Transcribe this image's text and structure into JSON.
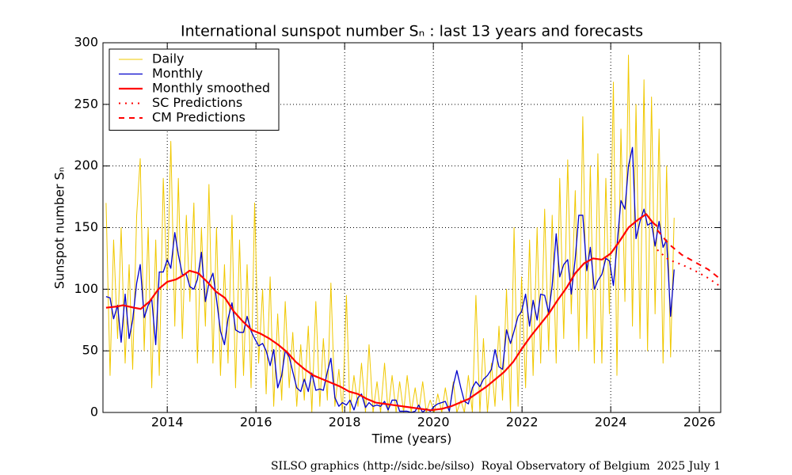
{
  "chart_data": {
    "type": "line",
    "title": "International sunspot number Sₙ : last 13 years and forecasts",
    "xlabel": "Time (years)",
    "ylabel": "Sunspot number Sₙ",
    "xlim": [
      2012.55,
      2026.48
    ],
    "ylim": [
      0,
      300
    ],
    "xticks": [
      2014,
      2016,
      2018,
      2020,
      2022,
      2024,
      2026
    ],
    "yticks": [
      0,
      50,
      100,
      150,
      200,
      250,
      300
    ],
    "grid": true,
    "legend": "upper left",
    "x": [
      2012.62,
      2012.71,
      2012.79,
      2012.88,
      2012.96,
      2013.05,
      2013.14,
      2013.22,
      2013.31,
      2013.39,
      2013.48,
      2013.57,
      2013.65,
      2013.74,
      2013.82,
      2013.91,
      2014.0,
      2014.08,
      2014.17,
      2014.25,
      2014.34,
      2014.43,
      2014.51,
      2014.6,
      2014.68,
      2014.77,
      2014.86,
      2014.94,
      2015.03,
      2015.11,
      2015.2,
      2015.29,
      2015.37,
      2015.46,
      2015.54,
      2015.63,
      2015.72,
      2015.8,
      2015.89,
      2015.97,
      2016.06,
      2016.15,
      2016.23,
      2016.32,
      2016.4,
      2016.49,
      2016.58,
      2016.66,
      2016.75,
      2016.83,
      2016.92,
      2017.01,
      2017.09,
      2017.18,
      2017.26,
      2017.35,
      2017.44,
      2017.52,
      2017.61,
      2017.69,
      2017.78,
      2017.87,
      2017.95,
      2018.04,
      2018.12,
      2018.21,
      2018.3,
      2018.38,
      2018.47,
      2018.55,
      2018.64,
      2018.73,
      2018.81,
      2018.9,
      2018.98,
      2019.07,
      2019.16,
      2019.24,
      2019.33,
      2019.41,
      2019.5,
      2019.59,
      2019.67,
      2019.76,
      2019.84,
      2019.93,
      2020.02,
      2020.1,
      2020.19,
      2020.27,
      2020.36,
      2020.45,
      2020.53,
      2020.62,
      2020.7,
      2020.79,
      2020.88,
      2020.96,
      2021.05,
      2021.13,
      2021.22,
      2021.31,
      2021.39,
      2021.48,
      2021.56,
      2021.65,
      2021.74,
      2021.82,
      2021.91,
      2021.99,
      2022.08,
      2022.17,
      2022.25,
      2022.34,
      2022.42,
      2022.51,
      2022.6,
      2022.68,
      2022.77,
      2022.85,
      2022.94,
      2023.03,
      2023.11,
      2023.2,
      2023.28,
      2023.37,
      2023.46,
      2023.54,
      2023.63,
      2023.71,
      2023.8,
      2023.89,
      2023.97,
      2024.06,
      2024.14,
      2024.23,
      2024.32,
      2024.4,
      2024.49,
      2024.57,
      2024.66,
      2024.75,
      2024.83,
      2024.92,
      2025.0,
      2025.09,
      2025.18,
      2025.26,
      2025.35,
      2025.43
    ],
    "series": [
      {
        "name": "Daily",
        "color": "#f0c800",
        "width": 1,
        "values": [
          170,
          30,
          140,
          60,
          150,
          40,
          120,
          35,
          160,
          206,
          50,
          150,
          20,
          140,
          30,
          190,
          100,
          220,
          70,
          190,
          60,
          160,
          90,
          170,
          40,
          150,
          70,
          185,
          40,
          150,
          30,
          120,
          40,
          160,
          20,
          140,
          30,
          120,
          20,
          170,
          40,
          100,
          15,
          110,
          5,
          80,
          10,
          90,
          20,
          65,
          5,
          55,
          10,
          70,
          0,
          90,
          5,
          60,
          10,
          105,
          5,
          35,
          0,
          95,
          0,
          30,
          5,
          40,
          0,
          55,
          0,
          25,
          0,
          40,
          0,
          30,
          0,
          25,
          0,
          30,
          0,
          20,
          0,
          25,
          0,
          10,
          0,
          15,
          0,
          20,
          0,
          25,
          0,
          10,
          0,
          30,
          0,
          95,
          0,
          60,
          0,
          40,
          5,
          70,
          10,
          100,
          0,
          150,
          5,
          110,
          20,
          140,
          30,
          150,
          40,
          165,
          50,
          160,
          40,
          190,
          60,
          205,
          80,
          180,
          50,
          240,
          60,
          200,
          40,
          210,
          40,
          190,
          80,
          268,
          30,
          230,
          90,
          290,
          70,
          250,
          60,
          270,
          50,
          256,
          80,
          230,
          40,
          200,
          45,
          158
        ]
      },
      {
        "name": "Monthly",
        "color": "#0000cc",
        "width": 1.3,
        "values": [
          94,
          93,
          76,
          87,
          57,
          96,
          60,
          75,
          105,
          120,
          77,
          87,
          92,
          55,
          114,
          114,
          124,
          117,
          146,
          128,
          112,
          112,
          102,
          100,
          108,
          130,
          90,
          105,
          113,
          92,
          66,
          55,
          76,
          89,
          67,
          65,
          65,
          78,
          66,
          60,
          54,
          56,
          50,
          38,
          51,
          20,
          30,
          50,
          45,
          33,
          20,
          17,
          27,
          17,
          32,
          18,
          19,
          18,
          33,
          44,
          12,
          5,
          8,
          6,
          10,
          2,
          12,
          15,
          4,
          8,
          5,
          6,
          5,
          9,
          2,
          10,
          10,
          1,
          1,
          1,
          0,
          1,
          6,
          0,
          3,
          1,
          5,
          7,
          8,
          9,
          1,
          22,
          34,
          20,
          9,
          7,
          20,
          25,
          21,
          27,
          30,
          35,
          51,
          37,
          35,
          67,
          56,
          66,
          78,
          82,
          96,
          70,
          91,
          75,
          96,
          95,
          81,
          103,
          145,
          110,
          120,
          124,
          96,
          125,
          160,
          160,
          115,
          134,
          100,
          107,
          112,
          125,
          123,
          103,
          135,
          172,
          165,
          200,
          215,
          141,
          155,
          165,
          152,
          154,
          135,
          155,
          134,
          140,
          78,
          116
        ]
      },
      {
        "name": "Monthly smoothed",
        "color": "#ff0000",
        "width": 2.2,
        "x": [
          2012.62,
          2012.87,
          2013.0,
          2013.25,
          2013.4,
          2013.6,
          2013.8,
          2014.0,
          2014.2,
          2014.35,
          2014.5,
          2014.7,
          2014.9,
          2015.1,
          2015.3,
          2015.5,
          2015.7,
          2015.9,
          2016.1,
          2016.3,
          2016.5,
          2016.7,
          2016.9,
          2017.1,
          2017.3,
          2017.5,
          2017.7,
          2017.9,
          2018.1,
          2018.3,
          2018.5,
          2018.7,
          2018.9,
          2019.1,
          2019.3,
          2019.5,
          2019.7,
          2019.95,
          2020.2,
          2020.4,
          2020.6,
          2020.8,
          2021.0,
          2021.2,
          2021.4,
          2021.6,
          2021.8,
          2022.0,
          2022.2,
          2022.4,
          2022.6,
          2022.8,
          2023.0,
          2023.2,
          2023.4,
          2023.6,
          2023.8,
          2024.0,
          2024.2,
          2024.4,
          2024.6,
          2024.8,
          2024.95,
          2025.05
        ],
        "values": [
          85,
          86,
          87,
          85,
          84,
          90,
          100,
          106,
          108,
          111,
          115,
          113,
          106,
          98,
          93,
          82,
          74,
          67,
          64,
          60,
          55,
          49,
          41,
          35,
          30,
          27,
          24,
          21,
          17,
          15,
          11,
          8,
          7,
          6,
          5,
          4,
          3,
          1.8,
          3,
          5,
          8,
          11,
          16,
          21,
          27,
          33,
          41,
          52,
          62,
          71,
          80,
          91,
          101,
          113,
          121,
          125,
          124,
          129,
          139,
          150,
          156,
          161,
          154,
          151
        ]
      },
      {
        "name": "SC Predictions",
        "color": "#ff0000",
        "width": 2,
        "style": "dotted",
        "x": [
          2025.05,
          2025.3,
          2025.6,
          2025.9,
          2026.2,
          2026.48
        ],
        "values": [
          132,
          124,
          120,
          115,
          109,
          102
        ]
      },
      {
        "name": "CM Predictions",
        "color": "#ff0000",
        "width": 2,
        "style": "dashed",
        "x": [
          2025.05,
          2025.3,
          2025.6,
          2025.9,
          2026.2,
          2026.48
        ],
        "values": [
          148,
          137,
          128,
          122,
          116,
          108
        ]
      }
    ]
  },
  "footer": "SILSO graphics (http://sidc.be/silso)  Royal Observatory of Belgium  2025 July 1"
}
